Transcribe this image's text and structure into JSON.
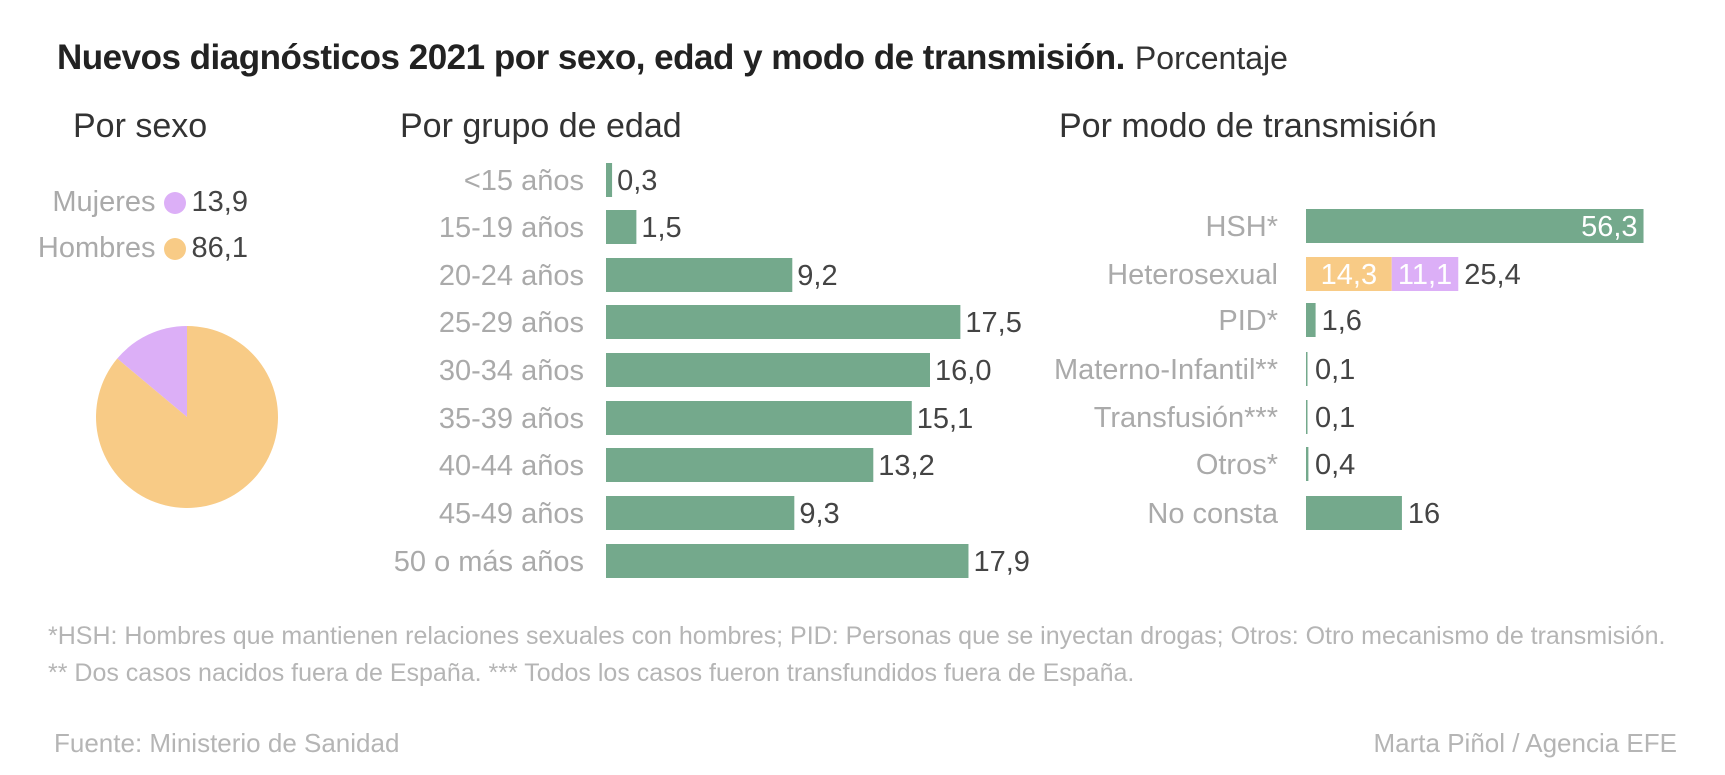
{
  "header": {
    "title": "Nuevos diagnósticos 2021 por sexo, edad y modo de transmisión.",
    "unit": "Porcentaje"
  },
  "colors": {
    "green": "#74a98c",
    "orange": "#f8cb86",
    "purple": "#dcaff7",
    "label_grey": "#aaaaaa",
    "value_dark": "#444444"
  },
  "chart_data": [
    {
      "type": "pie",
      "title": "Por sexo",
      "slices": [
        {
          "name": "Mujeres",
          "value": 13.9,
          "label": "13,9",
          "color": "#dcaff7"
        },
        {
          "name": "Hombres",
          "value": 86.1,
          "label": "86,1",
          "color": "#f8cb86"
        }
      ]
    },
    {
      "type": "bar",
      "orientation": "horizontal",
      "title": "Por grupo de edad",
      "categories": [
        "<15 años",
        "15-19 años",
        "20-24 años",
        "25-29 años",
        "30-34 años",
        "35-39 años",
        "40-44 años",
        "45-49 años",
        "50 o más años"
      ],
      "values": [
        0.3,
        1.5,
        9.2,
        17.5,
        16.0,
        15.1,
        13.2,
        9.3,
        17.9
      ],
      "value_labels": [
        "0,3",
        "1,5",
        "9,2",
        "17,5",
        "16,0",
        "15,1",
        "13,2",
        "9,3",
        "17,9"
      ],
      "color": "#74a98c"
    },
    {
      "type": "bar",
      "orientation": "horizontal",
      "stacked": true,
      "title": "Por modo de transmisión",
      "categories": [
        "HSH*",
        "Heterosexual",
        "PID*",
        "Materno-Infantil**",
        "Transfusión***",
        "Otros*",
        "No consta"
      ],
      "totals": [
        56.3,
        25.4,
        1.6,
        0.1,
        0.1,
        0.4,
        16
      ],
      "total_labels": [
        "56,3",
        "25,4",
        "1,6",
        "0,1",
        "0,1",
        "0,4",
        "16"
      ],
      "segments": [
        [
          {
            "value": 56.3,
            "color": "#74a98c"
          }
        ],
        [
          {
            "value": 14.3,
            "label": "14,3",
            "color": "#f8cb86"
          },
          {
            "value": 11.1,
            "label": "11,1",
            "color": "#dcaff7"
          }
        ],
        [
          {
            "value": 1.6,
            "color": "#74a98c"
          }
        ],
        [
          {
            "value": 0.1,
            "color": "#74a98c"
          }
        ],
        [
          {
            "value": 0.1,
            "color": "#74a98c"
          }
        ],
        [
          {
            "value": 0.4,
            "color": "#74a98c"
          }
        ],
        [
          {
            "value": 16,
            "color": "#74a98c"
          }
        ]
      ]
    }
  ],
  "notes": [
    "*HSH: Hombres que mantienen relaciones sexuales con hombres; PID: Personas que se inyectan drogas; Otros: Otro mecanismo de transmisión.",
    "** Dos casos nacidos fuera de España. *** Todos los casos fueron transfundidos fuera de España."
  ],
  "footer": {
    "source": "Fuente: Ministerio de Sanidad",
    "credit": "Marta Piñol / Agencia EFE"
  }
}
